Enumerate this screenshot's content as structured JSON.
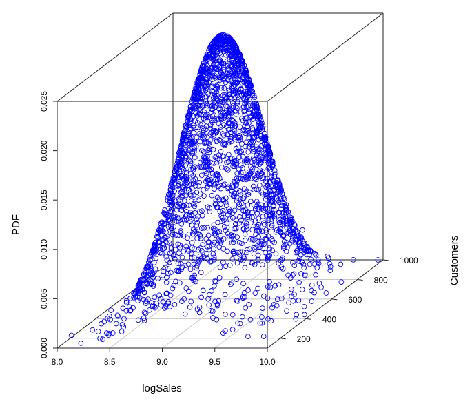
{
  "chart_data": {
    "type": "scatter",
    "title": "",
    "xlabel": "logSales",
    "ylabel": "Customers",
    "zlabel": "PDF",
    "xlim": [
      8.0,
      10.0
    ],
    "ylim": [
      100,
      1000
    ],
    "zlim": [
      0.0,
      0.025
    ],
    "x_ticks": [
      "8.0",
      "8.5",
      "9.0",
      "9.5",
      "10.0"
    ],
    "y_ticks": [
      "200",
      "400",
      "600",
      "800",
      "1000"
    ],
    "z_ticks": [
      "0.000",
      "0.005",
      "0.010",
      "0.015",
      "0.020",
      "0.025"
    ],
    "grid": true,
    "marker": "open-circle",
    "color": "#0000ff",
    "surface": {
      "description": "approximate bivariate normal density sampled at points",
      "peak_pdf": 0.0275,
      "logSales_mean": 9.05,
      "logSales_sd": 0.33,
      "Customers_mean": 520,
      "Customers_sd": 190
    },
    "sample_points": [
      {
        "logSales": 8.05,
        "Customers": 170,
        "PDF": 0.0006
      },
      {
        "logSales": 8.3,
        "Customers": 220,
        "PDF": 0.0015
      },
      {
        "logSales": 8.55,
        "Customers": 350,
        "PDF": 0.004
      },
      {
        "logSales": 8.8,
        "Customers": 450,
        "PDF": 0.012
      },
      {
        "logSales": 9.0,
        "Customers": 500,
        "PDF": 0.022
      },
      {
        "logSales": 9.05,
        "Customers": 520,
        "PDF": 0.0272
      },
      {
        "logSales": 9.3,
        "Customers": 600,
        "PDF": 0.017
      },
      {
        "logSales": 9.6,
        "Customers": 700,
        "PDF": 0.006
      },
      {
        "logSales": 9.9,
        "Customers": 850,
        "PDF": 0.0015
      },
      {
        "logSales": 10.0,
        "Customers": 960,
        "PDF": 0.0004
      }
    ]
  }
}
